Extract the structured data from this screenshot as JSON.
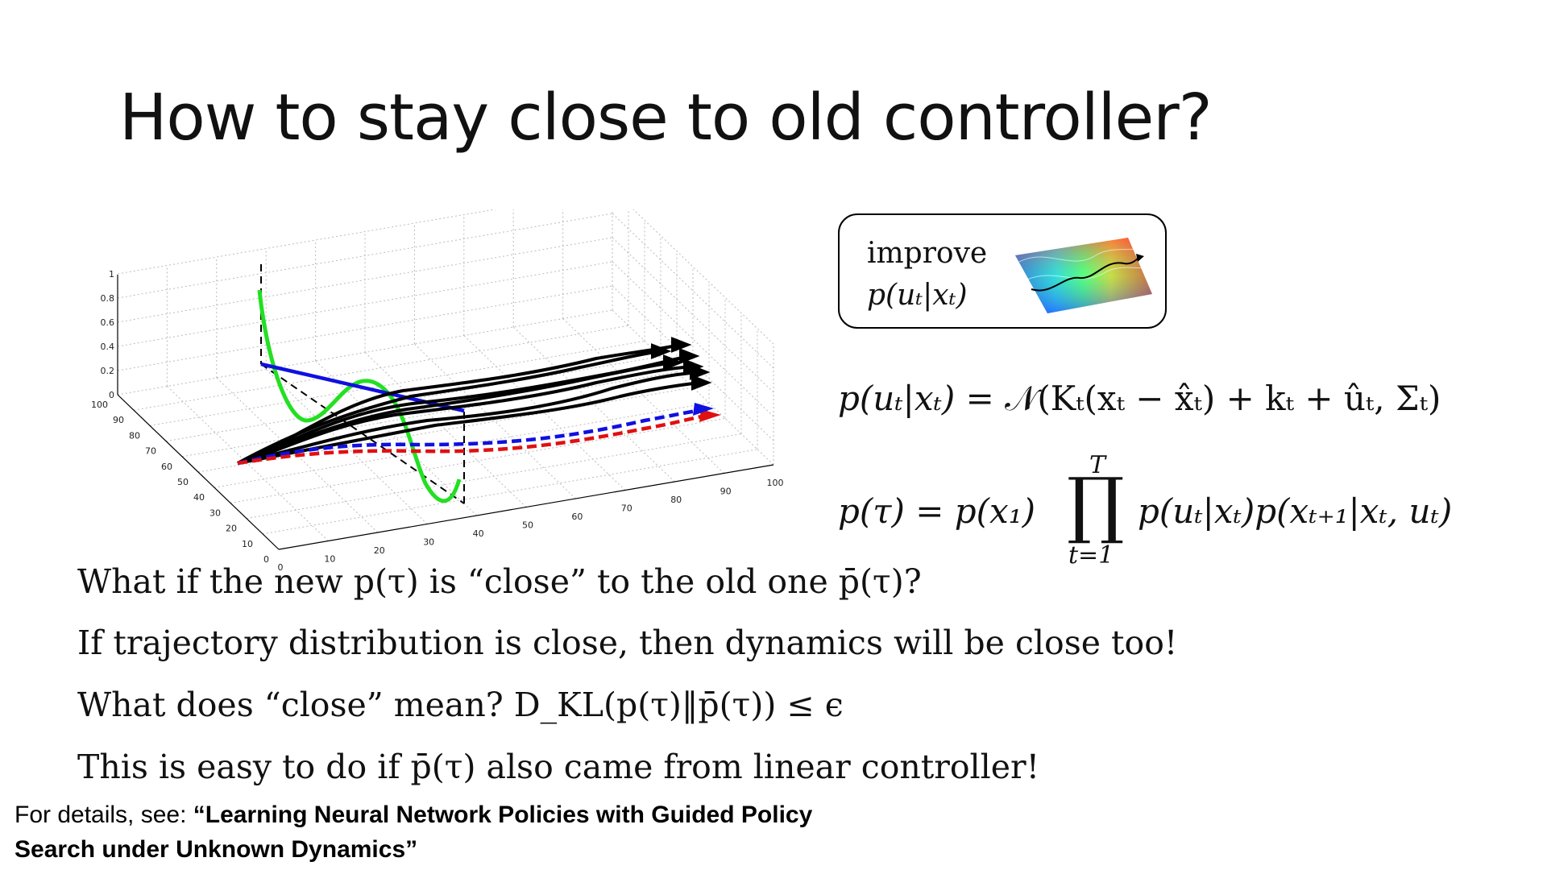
{
  "slide": {
    "title": "How to stay close to old controller?"
  },
  "box": {
    "line1": "improve",
    "line2": "p(uₜ|xₜ)"
  },
  "equations": {
    "policy_lhs": "p(uₜ|xₜ)",
    "policy_rhs": " = 𝒩(Kₜ(xₜ − x̂ₜ) + kₜ + ûₜ, Σₜ)",
    "traj_lhs": "p(τ) = p(x₁)",
    "prod_top": "T",
    "prod_bottom": "t=1",
    "traj_rhs": "p(uₜ|xₜ)p(xₜ₊₁|xₜ, uₜ)"
  },
  "text_lines": {
    "line1": "What if the new p(τ) is “close” to the old one p̄(τ)?",
    "line2": "If trajectory distribution is close, then dynamics will be close too!",
    "line3": "What does “close” mean? D_KL(p(τ)‖p̄(τ)) ≤ ϵ",
    "line4": "This is easy to do if p̄(τ) also came from linear controller!"
  },
  "footnote": {
    "prefix": "For details, see: ",
    "ref_line1": "“Learning Neural Network Policies with Guided Policy",
    "ref_line2": "Search under Unknown Dynamics”"
  },
  "plot": {
    "z_ticks": [
      "0",
      "0.2",
      "0.4",
      "0.6",
      "0.8",
      "1"
    ],
    "y_ticks": [
      "0",
      "10",
      "20",
      "30",
      "40",
      "50",
      "60",
      "70",
      "80",
      "90",
      "100"
    ],
    "x_ticks": [
      "0",
      "10",
      "20",
      "30",
      "40",
      "50",
      "60",
      "70",
      "80",
      "90",
      "100"
    ],
    "colors": {
      "green": "#22e022",
      "blue": "#1010e0",
      "red": "#e01010",
      "black": "#000000"
    }
  }
}
